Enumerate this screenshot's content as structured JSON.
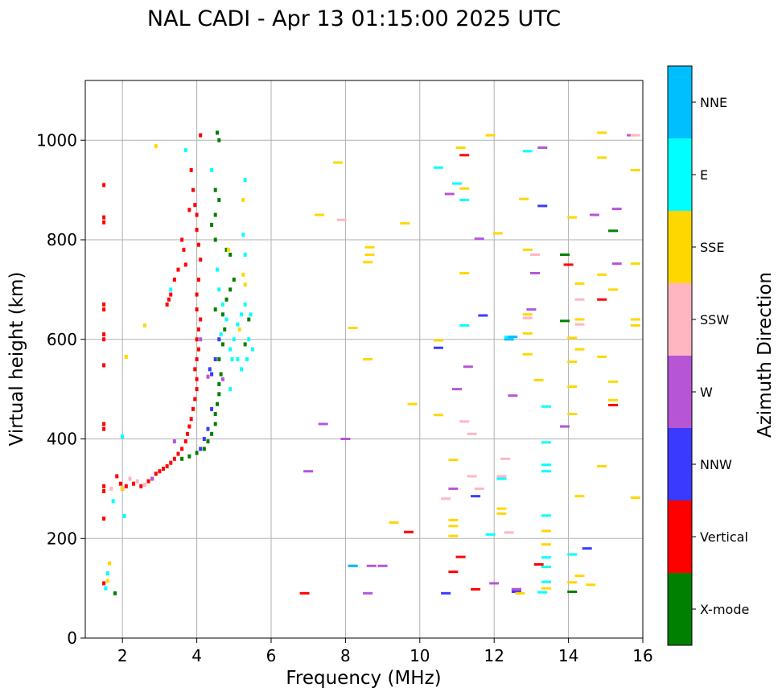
{
  "chart_data": {
    "type": "scatter",
    "title": "NAL CADI - Apr 13 01:15:00 2025 UTC",
    "xlabel": "Frequency (MHz)",
    "ylabel": "Virtual height (km)",
    "xlim": [
      1,
      16
    ],
    "ylim": [
      0,
      1120
    ],
    "xticks": [
      2,
      4,
      6,
      8,
      10,
      12,
      14,
      16
    ],
    "yticks": [
      0,
      200,
      400,
      600,
      800,
      1000
    ],
    "grid": true,
    "colorbar": {
      "label": "Azimuth Direction",
      "categories": [
        {
          "name": "X-mode",
          "color": "#008000"
        },
        {
          "name": "Vertical",
          "color": "#ff0000"
        },
        {
          "name": "NNW",
          "color": "#3a3aff"
        },
        {
          "name": "W",
          "color": "#b655d6"
        },
        {
          "name": "SSW",
          "color": "#ffb6c1"
        },
        {
          "name": "SSE",
          "color": "#ffd700"
        },
        {
          "name": "E",
          "color": "#00ffff"
        },
        {
          "name": "NNE",
          "color": "#00bfff"
        }
      ]
    },
    "series": [
      {
        "name": "Vertical",
        "points": [
          [
            1.5,
            910
          ],
          [
            1.5,
            845
          ],
          [
            1.5,
            835
          ],
          [
            1.5,
            670
          ],
          [
            1.5,
            660
          ],
          [
            1.5,
            610
          ],
          [
            1.5,
            600
          ],
          [
            1.5,
            548
          ],
          [
            1.5,
            430
          ],
          [
            1.5,
            420
          ],
          [
            1.5,
            305
          ],
          [
            1.5,
            295
          ],
          [
            1.5,
            240
          ],
          [
            1.5,
            110
          ],
          [
            1.85,
            325
          ],
          [
            1.95,
            310
          ],
          [
            2.0,
            300
          ],
          [
            2.1,
            305
          ],
          [
            2.3,
            310
          ],
          [
            2.5,
            305
          ],
          [
            2.7,
            315
          ],
          [
            2.8,
            320
          ],
          [
            2.9,
            330
          ],
          [
            3.0,
            335
          ],
          [
            3.1,
            340
          ],
          [
            3.2,
            345
          ],
          [
            3.3,
            352
          ],
          [
            3.4,
            360
          ],
          [
            3.5,
            370
          ],
          [
            3.6,
            380
          ],
          [
            3.7,
            395
          ],
          [
            3.75,
            410
          ],
          [
            3.8,
            425
          ],
          [
            3.85,
            440
          ],
          [
            3.9,
            460
          ],
          [
            3.95,
            480
          ],
          [
            4.0,
            500
          ],
          [
            4.0,
            520
          ],
          [
            3.95,
            540
          ],
          [
            4.0,
            560
          ],
          [
            4.05,
            580
          ],
          [
            4.0,
            600
          ],
          [
            4.05,
            620
          ],
          [
            4.1,
            640
          ],
          [
            4.0,
            660
          ],
          [
            4.0,
            690
          ],
          [
            4.05,
            720
          ],
          [
            4.1,
            760
          ],
          [
            4.05,
            790
          ],
          [
            4.0,
            820
          ],
          [
            4.0,
            850
          ],
          [
            3.95,
            870
          ],
          [
            3.9,
            900
          ],
          [
            3.85,
            940
          ],
          [
            4.1,
            1010
          ],
          [
            3.7,
            750
          ],
          [
            3.65,
            780
          ],
          [
            3.6,
            800
          ],
          [
            3.8,
            860
          ],
          [
            3.3,
            690
          ],
          [
            3.25,
            680
          ],
          [
            3.2,
            670
          ],
          [
            3.4,
            720
          ],
          [
            3.5,
            740
          ],
          [
            6.9,
            90
          ],
          [
            9.7,
            213
          ],
          [
            10.9,
            133
          ],
          [
            11.1,
            163
          ],
          [
            11.5,
            98
          ],
          [
            12.6,
            98
          ],
          [
            13.2,
            148
          ],
          [
            14.0,
            750
          ],
          [
            14.9,
            680
          ],
          [
            15.2,
            468
          ],
          [
            11.2,
            970
          ]
        ]
      },
      {
        "name": "X-mode",
        "points": [
          [
            1.8,
            90
          ],
          [
            3.6,
            360
          ],
          [
            3.8,
            365
          ],
          [
            4.0,
            372
          ],
          [
            4.2,
            380
          ],
          [
            4.3,
            395
          ],
          [
            4.4,
            410
          ],
          [
            4.5,
            430
          ],
          [
            4.5,
            450
          ],
          [
            4.55,
            470
          ],
          [
            4.6,
            490
          ],
          [
            4.6,
            510
          ],
          [
            4.65,
            530
          ],
          [
            4.6,
            560
          ],
          [
            4.7,
            590
          ],
          [
            4.75,
            620
          ],
          [
            4.7,
            650
          ],
          [
            4.8,
            680
          ],
          [
            4.9,
            700
          ],
          [
            5.0,
            720
          ],
          [
            4.5,
            800
          ],
          [
            4.4,
            830
          ],
          [
            4.5,
            850
          ],
          [
            4.6,
            880
          ],
          [
            4.5,
            900
          ],
          [
            4.6,
            1000
          ],
          [
            4.55,
            1015
          ],
          [
            4.5,
            660
          ],
          [
            5.3,
            590
          ],
          [
            5.4,
            640
          ],
          [
            13.9,
            770
          ],
          [
            13.9,
            637
          ],
          [
            14.1,
            93
          ],
          [
            15.2,
            818
          ],
          [
            4.8,
            780
          ],
          [
            4.9,
            770
          ]
        ]
      },
      {
        "name": "NNW",
        "points": [
          [
            4.1,
            380
          ],
          [
            4.2,
            400
          ],
          [
            4.3,
            420
          ],
          [
            4.4,
            460
          ],
          [
            4.4,
            530
          ],
          [
            4.5,
            560
          ],
          [
            4.35,
            540
          ],
          [
            4.6,
            600
          ],
          [
            10.7,
            90
          ],
          [
            10.5,
            583
          ],
          [
            11.5,
            285
          ],
          [
            11.7,
            648
          ],
          [
            12.6,
            93
          ],
          [
            13.3,
            868
          ],
          [
            14.5,
            180
          ]
        ]
      },
      {
        "name": "W",
        "points": [
          [
            2.8,
            320
          ],
          [
            3.4,
            395
          ],
          [
            4.3,
            525
          ],
          [
            4.7,
            520
          ],
          [
            4.1,
            600
          ],
          [
            7.0,
            335
          ],
          [
            7.4,
            430
          ],
          [
            8.0,
            400
          ],
          [
            8.2,
            145
          ],
          [
            8.6,
            90
          ],
          [
            8.7,
            145
          ],
          [
            9.0,
            145
          ],
          [
            10.9,
            300
          ],
          [
            11.3,
            545
          ],
          [
            10.8,
            892
          ],
          [
            11.0,
            500
          ],
          [
            11.6,
            802
          ],
          [
            12.0,
            110
          ],
          [
            12.5,
            487
          ],
          [
            12.6,
            98
          ],
          [
            13.0,
            660
          ],
          [
            13.1,
            733
          ],
          [
            13.3,
            985
          ],
          [
            13.9,
            425
          ],
          [
            14.7,
            850
          ],
          [
            15.3,
            752
          ],
          [
            15.3,
            862
          ],
          [
            15.7,
            1010
          ]
        ]
      },
      {
        "name": "SSW",
        "points": [
          [
            1.7,
            300
          ],
          [
            2.2,
            320
          ],
          [
            2.4,
            315
          ],
          [
            2.6,
            308
          ],
          [
            10.7,
            280
          ],
          [
            11.4,
            325
          ],
          [
            11.6,
            300
          ],
          [
            12.2,
            325
          ],
          [
            12.3,
            360
          ],
          [
            12.4,
            212
          ],
          [
            12.9,
            643
          ],
          [
            13.1,
            770
          ],
          [
            14.3,
            680
          ],
          [
            14.3,
            630
          ],
          [
            15.8,
            1010
          ],
          [
            11.4,
            410
          ],
          [
            11.2,
            435
          ],
          [
            7.9,
            840
          ]
        ]
      },
      {
        "name": "SSE",
        "points": [
          [
            1.6,
            115
          ],
          [
            1.65,
            150
          ],
          [
            2.0,
            300
          ],
          [
            2.1,
            565
          ],
          [
            2.6,
            628
          ],
          [
            2.9,
            988
          ],
          [
            4.85,
            780
          ],
          [
            5.25,
            730
          ],
          [
            5.3,
            710
          ],
          [
            5.25,
            880
          ],
          [
            5.15,
            620
          ],
          [
            7.3,
            850
          ],
          [
            7.8,
            955
          ],
          [
            8.2,
            623
          ],
          [
            8.6,
            560
          ],
          [
            8.65,
            770
          ],
          [
            8.6,
            755
          ],
          [
            8.65,
            785
          ],
          [
            9.3,
            232
          ],
          [
            9.6,
            833
          ],
          [
            9.8,
            470
          ],
          [
            10.5,
            448
          ],
          [
            10.5,
            598
          ],
          [
            10.9,
            358
          ],
          [
            10.9,
            237
          ],
          [
            10.9,
            225
          ],
          [
            10.9,
            205
          ],
          [
            11.1,
            985
          ],
          [
            11.2,
            733
          ],
          [
            11.2,
            903
          ],
          [
            11.9,
            1010
          ],
          [
            12.1,
            813
          ],
          [
            12.2,
            250
          ],
          [
            12.2,
            260
          ],
          [
            12.7,
            90
          ],
          [
            12.8,
            882
          ],
          [
            12.9,
            780
          ],
          [
            12.9,
            650
          ],
          [
            12.9,
            612
          ],
          [
            12.9,
            570
          ],
          [
            13.2,
            518
          ],
          [
            13.4,
            188
          ],
          [
            13.4,
            215
          ],
          [
            13.4,
            100
          ],
          [
            14.1,
            845
          ],
          [
            14.1,
            603
          ],
          [
            14.1,
            555
          ],
          [
            14.1,
            505
          ],
          [
            14.1,
            450
          ],
          [
            14.1,
            112
          ],
          [
            14.3,
            712
          ],
          [
            14.3,
            580
          ],
          [
            14.3,
            640
          ],
          [
            14.3,
            285
          ],
          [
            14.3,
            125
          ],
          [
            14.6,
            107
          ],
          [
            14.9,
            1015
          ],
          [
            14.9,
            965
          ],
          [
            14.9,
            730
          ],
          [
            14.9,
            565
          ],
          [
            14.9,
            345
          ],
          [
            15.2,
            700
          ],
          [
            15.2,
            515
          ],
          [
            15.2,
            478
          ],
          [
            15.8,
            940
          ],
          [
            15.8,
            752
          ],
          [
            15.8,
            640
          ],
          [
            15.8,
            628
          ],
          [
            15.8,
            282
          ]
        ]
      },
      {
        "name": "E",
        "points": [
          [
            1.6,
            130
          ],
          [
            1.55,
            100
          ],
          [
            1.75,
            275
          ],
          [
            2.05,
            245
          ],
          [
            2.0,
            405
          ],
          [
            3.3,
            700
          ],
          [
            3.7,
            980
          ],
          [
            4.4,
            940
          ],
          [
            4.55,
            740
          ],
          [
            4.6,
            700
          ],
          [
            4.7,
            670
          ],
          [
            4.65,
            610
          ],
          [
            4.8,
            640
          ],
          [
            4.9,
            580
          ],
          [
            4.95,
            560
          ],
          [
            5.0,
            600
          ],
          [
            5.1,
            630
          ],
          [
            5.2,
            650
          ],
          [
            5.3,
            670
          ],
          [
            5.4,
            600
          ],
          [
            5.5,
            580
          ],
          [
            5.35,
            560
          ],
          [
            5.45,
            650
          ],
          [
            5.2,
            540
          ],
          [
            5.1,
            560
          ],
          [
            4.9,
            500
          ],
          [
            5.25,
            810
          ],
          [
            5.3,
            770
          ],
          [
            5.3,
            920
          ],
          [
            10.5,
            945
          ],
          [
            11.0,
            913
          ],
          [
            11.2,
            880
          ],
          [
            11.2,
            628
          ],
          [
            11.9,
            208
          ],
          [
            12.4,
            605
          ],
          [
            12.2,
            320
          ],
          [
            12.9,
            978
          ],
          [
            13.3,
            92
          ],
          [
            13.4,
            393
          ],
          [
            13.4,
            348
          ],
          [
            13.4,
            335
          ],
          [
            13.4,
            246
          ],
          [
            13.4,
            162
          ],
          [
            13.4,
            143
          ],
          [
            13.4,
            113
          ],
          [
            13.4,
            465
          ],
          [
            14.1,
            168
          ]
        ]
      },
      {
        "name": "NNE",
        "points": [
          [
            8.2,
            145
          ],
          [
            12.4,
            600
          ],
          [
            12.5,
            605
          ]
        ]
      }
    ]
  }
}
